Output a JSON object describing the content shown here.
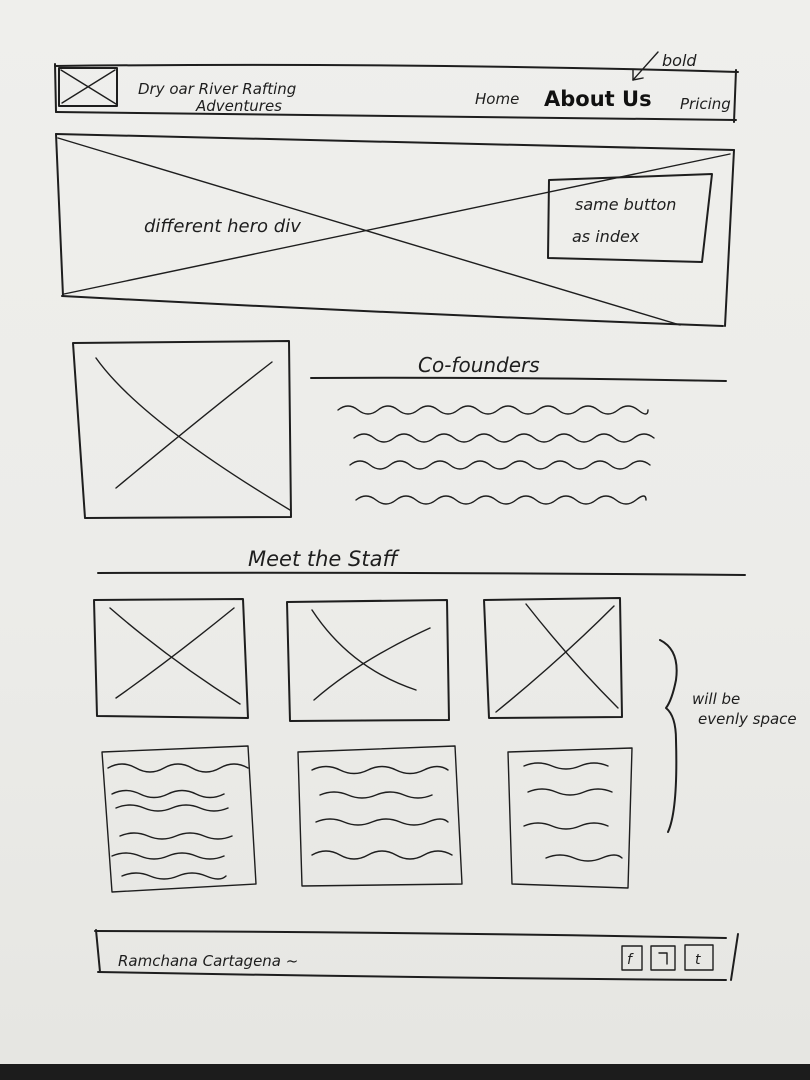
{
  "header": {
    "brand_line1": "Dry oar River Rafting",
    "brand_line2": "Adventures",
    "nav_home": "Home",
    "nav_about": "About Us",
    "nav_pricing": "Pricing",
    "note_bold": "bold"
  },
  "hero": {
    "label": "different hero div",
    "button_line1": "same button",
    "button_line2": "as index"
  },
  "cofounders": {
    "title": "Co-founders"
  },
  "staff": {
    "title": "Meet the Staff",
    "note_line1": "will be",
    "note_line2": "evenly space"
  },
  "footer": {
    "name": "Ramchana Cartagena ~",
    "social_f": "f",
    "social_t": "t"
  },
  "colors": {
    "paper": "#ecece9",
    "ink": "#1e1e1e"
  }
}
